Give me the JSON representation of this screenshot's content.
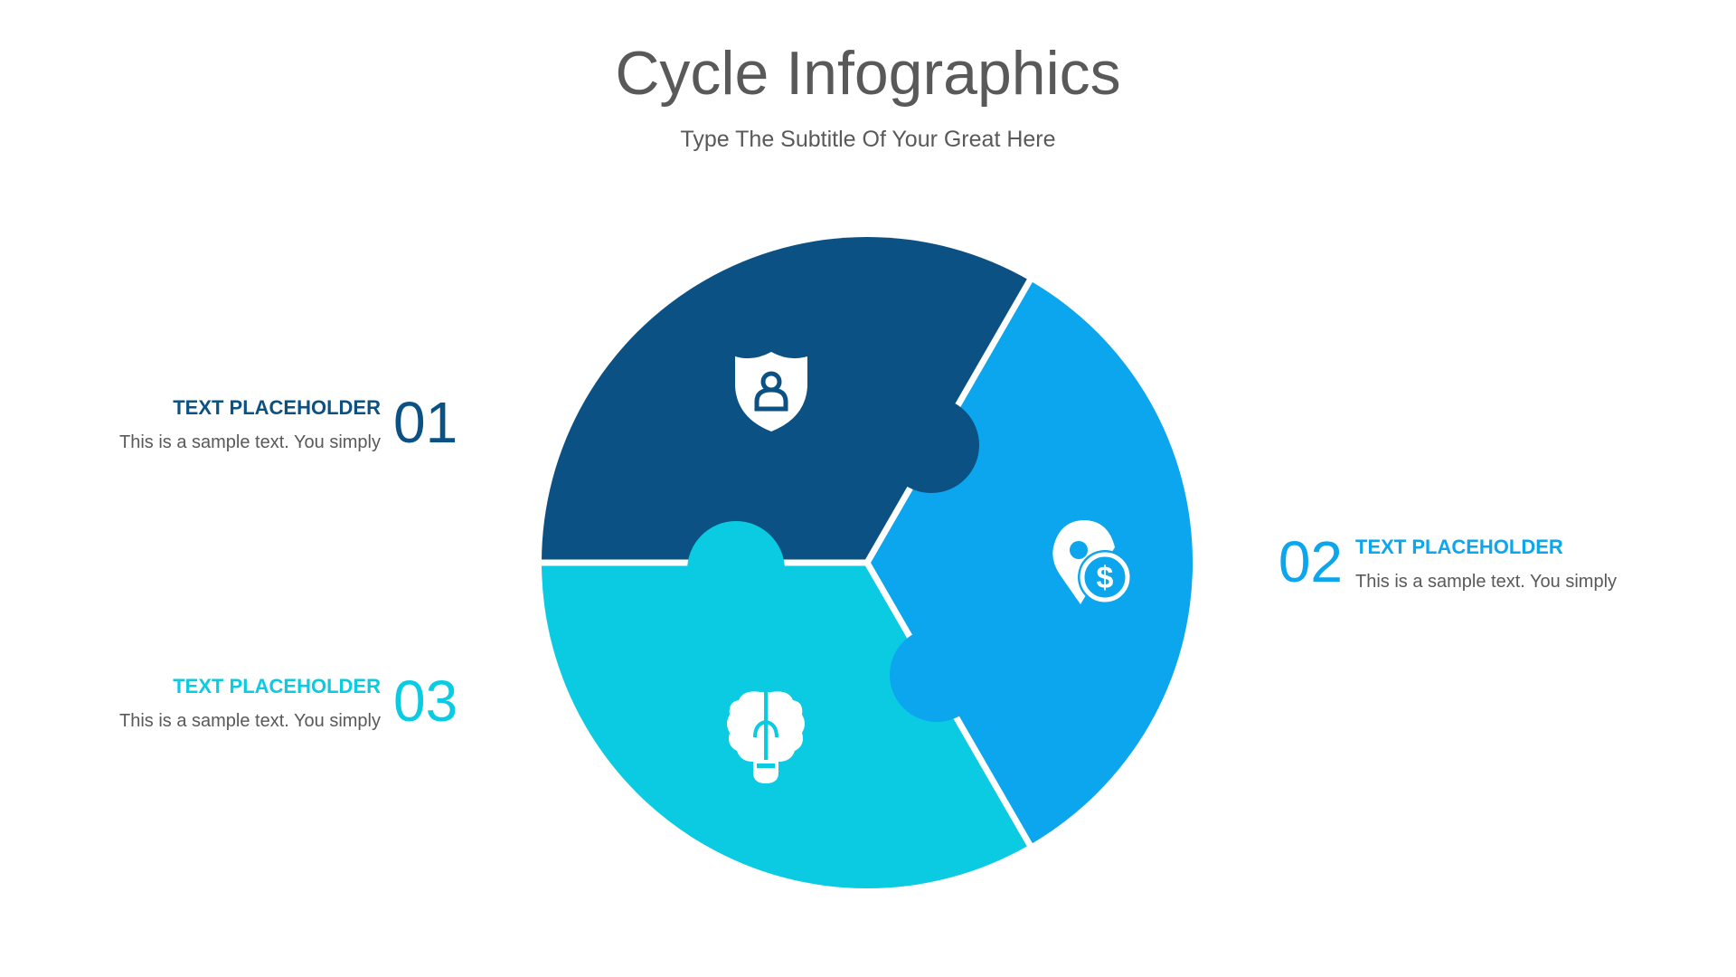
{
  "title": "Cycle Infographics",
  "subtitle": "Type The Subtitle Of Your Great Here",
  "colors": {
    "dark": "#0B5183",
    "blue": "#0BA6EE",
    "cyan": "#0ACBE2",
    "text": "#595959"
  },
  "items": [
    {
      "number": "01",
      "heading": "TEXT PLACEHOLDER",
      "body": "This is a sample text. You simply",
      "icon": "shield-user-icon"
    },
    {
      "number": "02",
      "heading": "TEXT PLACEHOLDER",
      "body": "This is a sample text. You simply",
      "icon": "location-dollar-icon"
    },
    {
      "number": "03",
      "heading": "TEXT PLACEHOLDER",
      "body": "This is a sample text. You simply",
      "icon": "brain-bulb-icon"
    }
  ]
}
